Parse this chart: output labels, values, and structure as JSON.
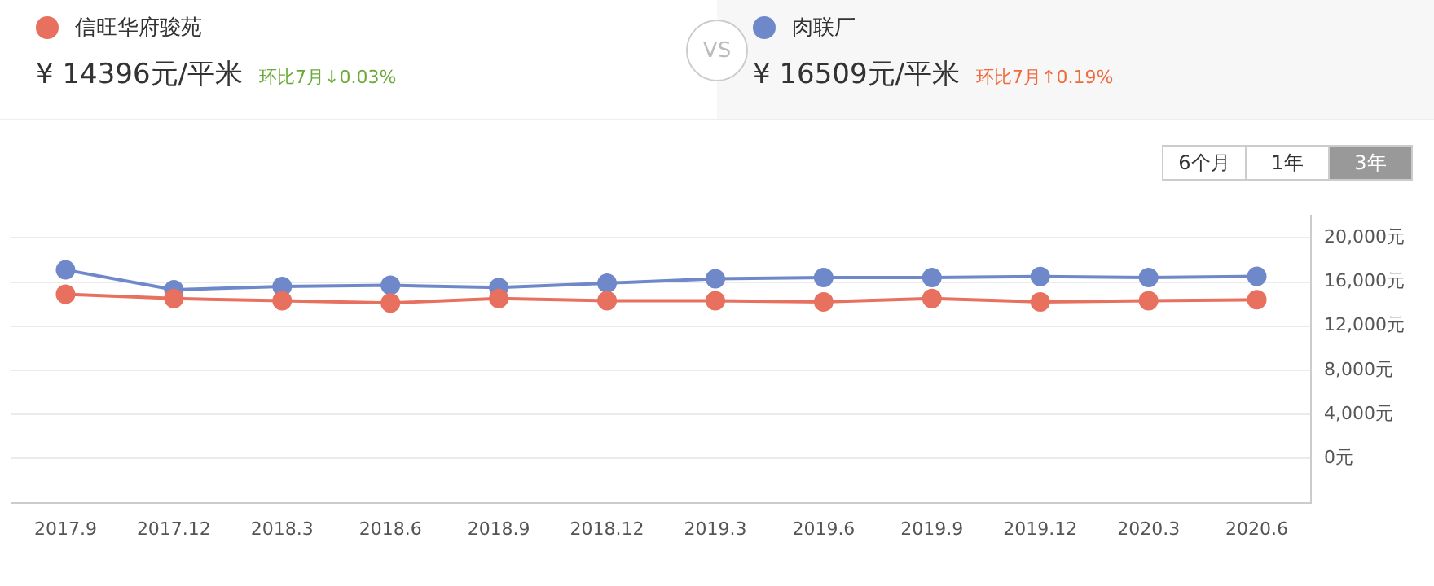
{
  "chart_data": {
    "type": "line",
    "categories": [
      "2017.9",
      "2017.12",
      "2018.3",
      "2018.6",
      "2018.9",
      "2018.12",
      "2019.3",
      "2019.6",
      "2019.9",
      "2019.12",
      "2020.3",
      "2020.6"
    ],
    "series": [
      {
        "name": "信旺华府骏苑",
        "color": "#e8705f",
        "values": [
          14900,
          14500,
          14300,
          14100,
          14500,
          14300,
          14300,
          14200,
          14500,
          14200,
          14300,
          14396
        ]
      },
      {
        "name": "肉联厂",
        "color": "#6f88c9",
        "values": [
          17100,
          15300,
          15600,
          15700,
          15500,
          15900,
          16300,
          16400,
          16400,
          16500,
          16400,
          16509
        ]
      }
    ],
    "ylim": [
      -4000,
      22000
    ],
    "yticks": [
      {
        "value": 0,
        "label": "0元"
      },
      {
        "value": 4000,
        "label": "4,000元"
      },
      {
        "value": 8000,
        "label": "8,000元"
      },
      {
        "value": 12000,
        "label": "12,000元"
      },
      {
        "value": 16000,
        "label": "16,000元"
      },
      {
        "value": 20000,
        "label": "20,000元"
      }
    ],
    "grid": "y",
    "legend": "top",
    "marker": "circle",
    "line_style": "solid",
    "annotations": [
      "¥ 14396元/平米",
      "环比7月↓0.03%",
      "¥ 16509元/平米",
      "环比7月↑0.19%",
      "VS",
      "6个月",
      "1年",
      "3年"
    ]
  }
}
